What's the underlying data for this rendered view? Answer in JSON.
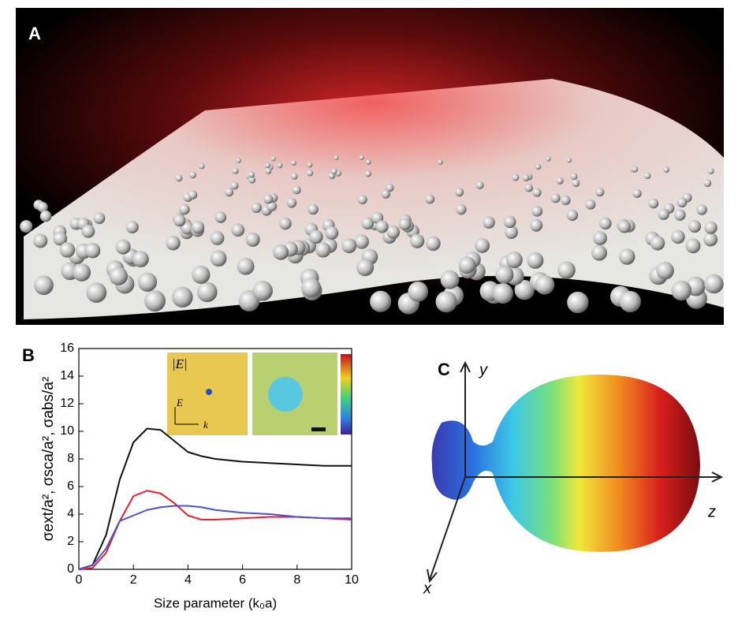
{
  "panels": {
    "a": {
      "label": "A"
    },
    "b": {
      "label": "B",
      "inset_labels": [
        "|E|",
        "E",
        "k"
      ]
    },
    "c": {
      "label": "C",
      "axis_labels": [
        "y",
        "z",
        "x"
      ]
    }
  },
  "chart_data": {
    "type": "line",
    "xlabel": "Size parameter (k₀a)",
    "ylabel": "σext/a², σsca/a², σabs/a²",
    "x": [
      0,
      0.5,
      1,
      1.5,
      2,
      2.5,
      3,
      3.5,
      4,
      4.5,
      5,
      6,
      7,
      8,
      9,
      10
    ],
    "series": [
      {
        "color": "#111111",
        "values": [
          0,
          0.3,
          2.5,
          6.5,
          9.2,
          10.2,
          10.1,
          9.3,
          8.5,
          8.2,
          8.0,
          7.8,
          7.7,
          7.6,
          7.5,
          7.5
        ]
      },
      {
        "color": "#e8202a",
        "values": [
          0,
          0.1,
          1.2,
          3.5,
          5.3,
          5.7,
          5.5,
          4.8,
          3.9,
          3.6,
          3.6,
          3.7,
          3.8,
          3.8,
          3.7,
          3.6
        ]
      },
      {
        "color": "#4a52c8",
        "values": [
          0,
          0.3,
          1.5,
          3.5,
          3.9,
          4.3,
          4.5,
          4.6,
          4.6,
          4.5,
          4.3,
          4.1,
          4.0,
          3.8,
          3.7,
          3.7
        ]
      }
    ],
    "xlim": [
      0,
      10
    ],
    "xticks": [
      0,
      2,
      4,
      6,
      8,
      10
    ],
    "ylim": [
      0,
      16
    ],
    "yticks": [
      0,
      2,
      4,
      6,
      8,
      10,
      12,
      14,
      16
    ]
  }
}
